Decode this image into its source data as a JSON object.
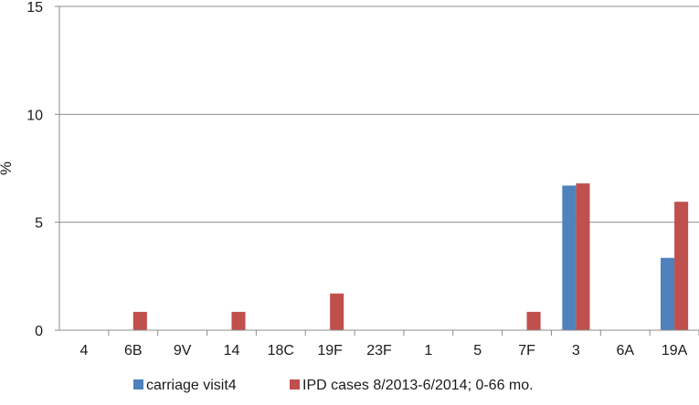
{
  "chart_data": {
    "type": "bar",
    "title": "",
    "xlabel": "",
    "ylabel": "%",
    "ylim": [
      0,
      15
    ],
    "yticks": [
      0,
      5,
      10,
      15
    ],
    "grid": true,
    "legend_position": "bottom",
    "categories": [
      "4",
      "6B",
      "9V",
      "14",
      "18C",
      "19F",
      "23F",
      "1",
      "5",
      "7F",
      "3",
      "6A",
      "19A"
    ],
    "series": [
      {
        "name": "carriage visit4",
        "color": "#4f81bd",
        "values": [
          0,
          0,
          0,
          0,
          0,
          0,
          0,
          0,
          0,
          0,
          6.7,
          0,
          3.35
        ]
      },
      {
        "name": "IPD cases 8/2013-6/2014; 0-66 mo.",
        "color": "#c0504d",
        "values": [
          0,
          0.85,
          0,
          0.85,
          0,
          1.7,
          0,
          0,
          0,
          0.85,
          6.8,
          0,
          5.95
        ]
      }
    ]
  }
}
